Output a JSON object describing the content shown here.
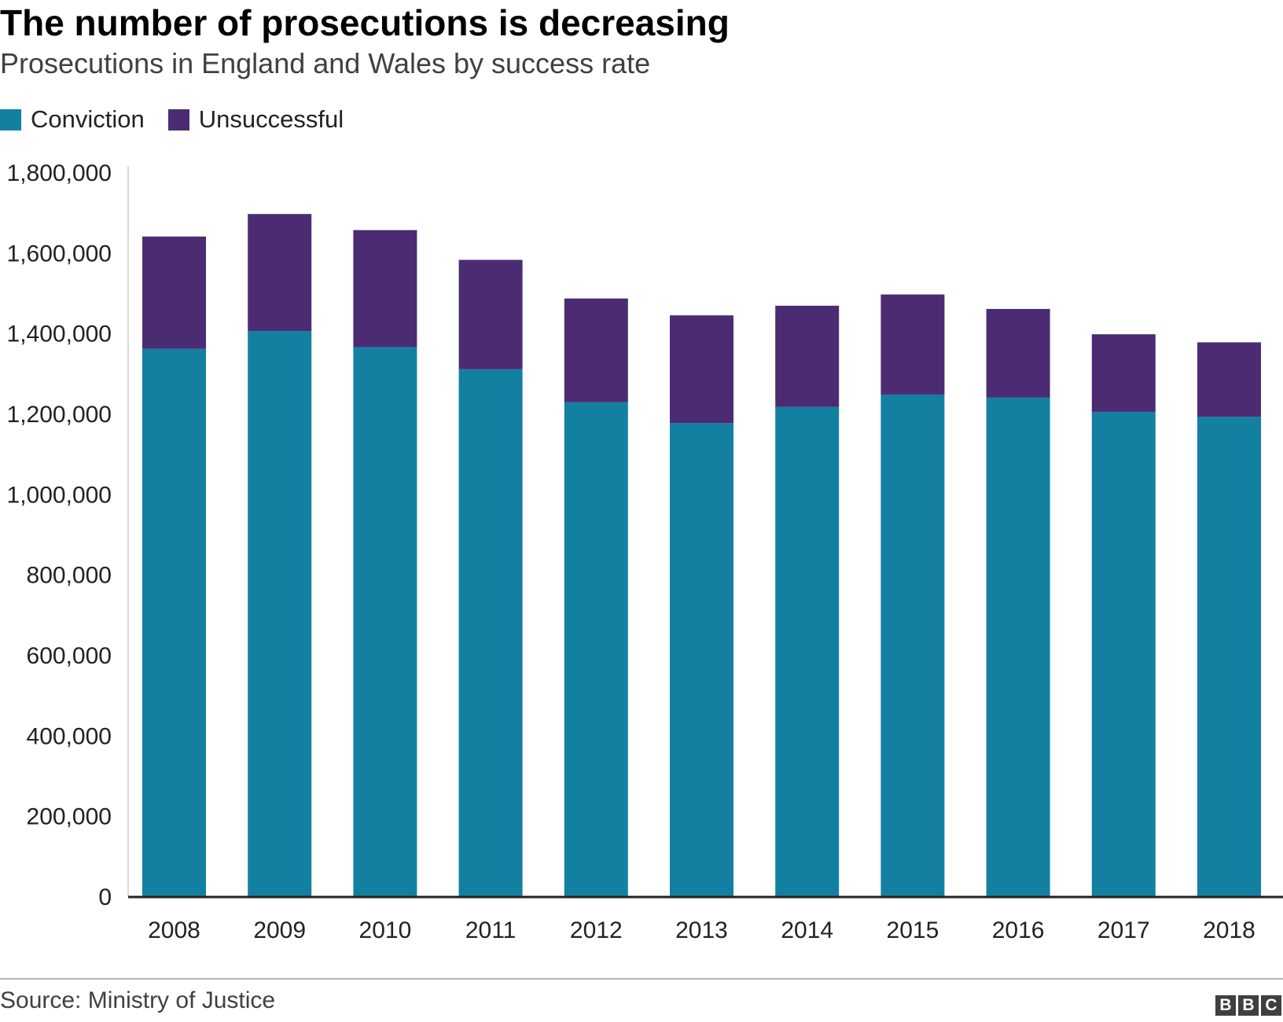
{
  "header": {
    "title": "The number of prosecutions is decreasing",
    "subtitle": "Prosecutions in England and Wales by success rate"
  },
  "legend": [
    {
      "label": "Conviction",
      "color": "#1380a1"
    },
    {
      "label": "Unsuccessful",
      "color": "#4b2c73"
    }
  ],
  "footer": {
    "source": "Source: Ministry of Justice",
    "logo": [
      "B",
      "B",
      "C"
    ]
  },
  "chart_data": {
    "type": "bar",
    "stacked": true,
    "title": "The number of prosecutions is decreasing",
    "subtitle": "Prosecutions in England and Wales by success rate",
    "xlabel": "",
    "ylabel": "",
    "categories": [
      "2008",
      "2009",
      "2010",
      "2011",
      "2012",
      "2013",
      "2014",
      "2015",
      "2016",
      "2017",
      "2018"
    ],
    "series": [
      {
        "name": "Conviction",
        "color": "#1380a1",
        "values": [
          1361000,
          1405000,
          1365000,
          1310000,
          1228000,
          1176000,
          1216000,
          1247000,
          1240000,
          1204000,
          1192000
        ]
      },
      {
        "name": "Unsuccessful",
        "color": "#4b2c73",
        "values": [
          279000,
          291000,
          291000,
          272000,
          258000,
          268000,
          252000,
          249000,
          220000,
          193000,
          185000
        ]
      }
    ],
    "ylim": [
      0,
      1800000
    ],
    "yticks": [
      0,
      200000,
      400000,
      600000,
      800000,
      1000000,
      1200000,
      1400000,
      1600000,
      1800000
    ],
    "ytick_labels": [
      "0",
      "200,000",
      "400,000",
      "600,000",
      "800,000",
      "1,000,000",
      "1,200,000",
      "1,400,000",
      "1,600,000",
      "1,800,000"
    ],
    "legend_position": "top-left",
    "grid": false
  }
}
